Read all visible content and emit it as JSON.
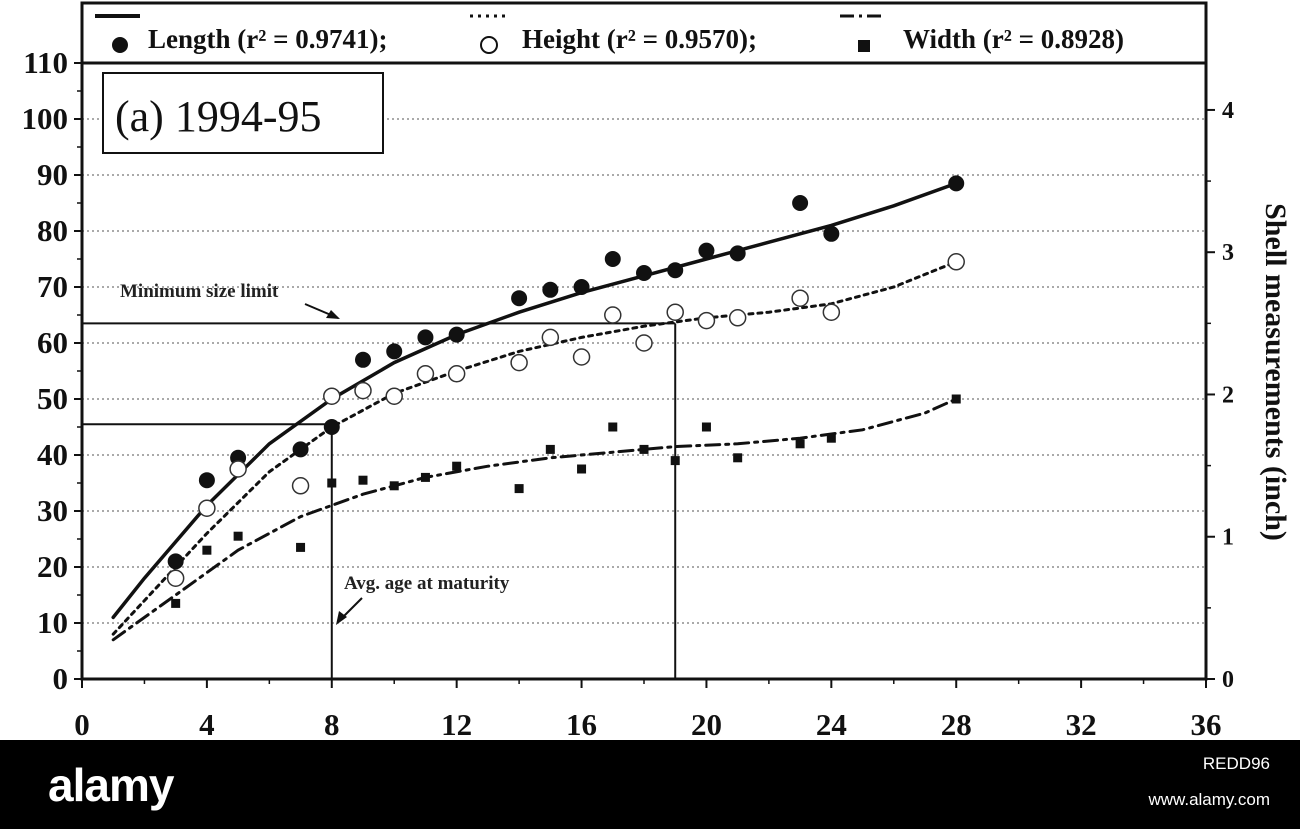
{
  "chart_data": {
    "type": "scatter",
    "panel_label": "(a) 1994-95",
    "xlabel": "",
    "ylabel": "",
    "ylabel_right": "Shell measurements (inch)",
    "xlim": [
      0,
      36
    ],
    "ylim": [
      0,
      110
    ],
    "ylim_right": [
      0,
      4.33
    ],
    "x_ticks": [
      "0",
      "4",
      "8",
      "12",
      "16",
      "20",
      "24",
      "28",
      "32",
      "36"
    ],
    "y_ticks": [
      "0",
      "10",
      "20",
      "30",
      "40",
      "50",
      "60",
      "70",
      "80",
      "90",
      "100",
      "110"
    ],
    "y_right_ticks": [
      "0",
      "1",
      "2",
      "3",
      "4"
    ],
    "grid": "horizontal dotted",
    "legend_position": "top",
    "legend": [
      {
        "label": "Length (r² = 0.9741);",
        "marker": "filled-circle",
        "line": "solid"
      },
      {
        "label": "Height (r² = 0.9570);",
        "marker": "open-circle",
        "line": "dotted"
      },
      {
        "label": "Width (r² = 0.8928)",
        "marker": "filled-square",
        "line": "dash-dot"
      }
    ],
    "series": [
      {
        "name": "Length",
        "points": [
          [
            3,
            21
          ],
          [
            4,
            35.5
          ],
          [
            5,
            39.5
          ],
          [
            7,
            41
          ],
          [
            8,
            45
          ],
          [
            9,
            57
          ],
          [
            10,
            58.5
          ],
          [
            11,
            61
          ],
          [
            12,
            61.5
          ],
          [
            14,
            68
          ],
          [
            15,
            69.5
          ],
          [
            16,
            70
          ],
          [
            17,
            75
          ],
          [
            18,
            72.5
          ],
          [
            19,
            73
          ],
          [
            20,
            76.5
          ],
          [
            21,
            76
          ],
          [
            23,
            85
          ],
          [
            24,
            79.5
          ],
          [
            28,
            88.5
          ]
        ],
        "fit": [
          [
            1,
            11
          ],
          [
            2,
            18
          ],
          [
            4,
            31
          ],
          [
            6,
            42
          ],
          [
            8,
            50
          ],
          [
            10,
            56.5
          ],
          [
            12,
            61.5
          ],
          [
            14,
            65.5
          ],
          [
            16,
            69
          ],
          [
            18,
            72
          ],
          [
            20,
            75
          ],
          [
            22,
            78
          ],
          [
            24,
            81
          ],
          [
            26,
            84.5
          ],
          [
            28,
            88.5
          ]
        ]
      },
      {
        "name": "Height",
        "points": [
          [
            3,
            18
          ],
          [
            4,
            30.5
          ],
          [
            5,
            37.5
          ],
          [
            7,
            34.5
          ],
          [
            8,
            50.5
          ],
          [
            9,
            51.5
          ],
          [
            10,
            50.5
          ],
          [
            11,
            54.5
          ],
          [
            12,
            54.5
          ],
          [
            14,
            56.5
          ],
          [
            15,
            61
          ],
          [
            16,
            57.5
          ],
          [
            17,
            65
          ],
          [
            18,
            60
          ],
          [
            19,
            65.5
          ],
          [
            20,
            64
          ],
          [
            21,
            64.5
          ],
          [
            23,
            68
          ],
          [
            24,
            65.5
          ],
          [
            28,
            74.5
          ]
        ],
        "fit": [
          [
            1,
            8
          ],
          [
            2,
            14
          ],
          [
            4,
            26
          ],
          [
            6,
            37
          ],
          [
            8,
            45
          ],
          [
            10,
            51
          ],
          [
            12,
            55
          ],
          [
            14,
            58.5
          ],
          [
            16,
            61
          ],
          [
            18,
            63
          ],
          [
            20,
            64.5
          ],
          [
            22,
            65.5
          ],
          [
            24,
            67
          ],
          [
            26,
            70
          ],
          [
            28,
            74.5
          ]
        ]
      },
      {
        "name": "Width",
        "points": [
          [
            3,
            13.5
          ],
          [
            4,
            23
          ],
          [
            5,
            25.5
          ],
          [
            7,
            23.5
          ],
          [
            8,
            35
          ],
          [
            9,
            35.5
          ],
          [
            10,
            34.5
          ],
          [
            11,
            36
          ],
          [
            12,
            38
          ],
          [
            14,
            34
          ],
          [
            15,
            41
          ],
          [
            16,
            37.5
          ],
          [
            17,
            45
          ],
          [
            18,
            41
          ],
          [
            19,
            39
          ],
          [
            20,
            45
          ],
          [
            21,
            39.5
          ],
          [
            23,
            42
          ],
          [
            24,
            43
          ],
          [
            28,
            50
          ]
        ],
        "fit": [
          [
            1,
            7
          ],
          [
            3,
            15
          ],
          [
            5,
            23
          ],
          [
            7,
            29
          ],
          [
            9,
            33
          ],
          [
            11,
            36
          ],
          [
            13,
            38
          ],
          [
            15,
            39.5
          ],
          [
            17,
            40.5
          ],
          [
            19,
            41.5
          ],
          [
            21,
            42
          ],
          [
            23,
            43
          ],
          [
            25,
            44.5
          ],
          [
            27,
            47.5
          ],
          [
            28,
            50
          ]
        ]
      }
    ],
    "reference_lines": [
      {
        "label": "Minimum size limit",
        "y": 63.5,
        "x_end": 19
      },
      {
        "label": "Avg. age at maturity",
        "y": 45.5,
        "x_end": 8
      }
    ]
  },
  "watermark": {
    "logo": "alamy",
    "image_id": "REDD96",
    "url": "www.alamy.com"
  }
}
